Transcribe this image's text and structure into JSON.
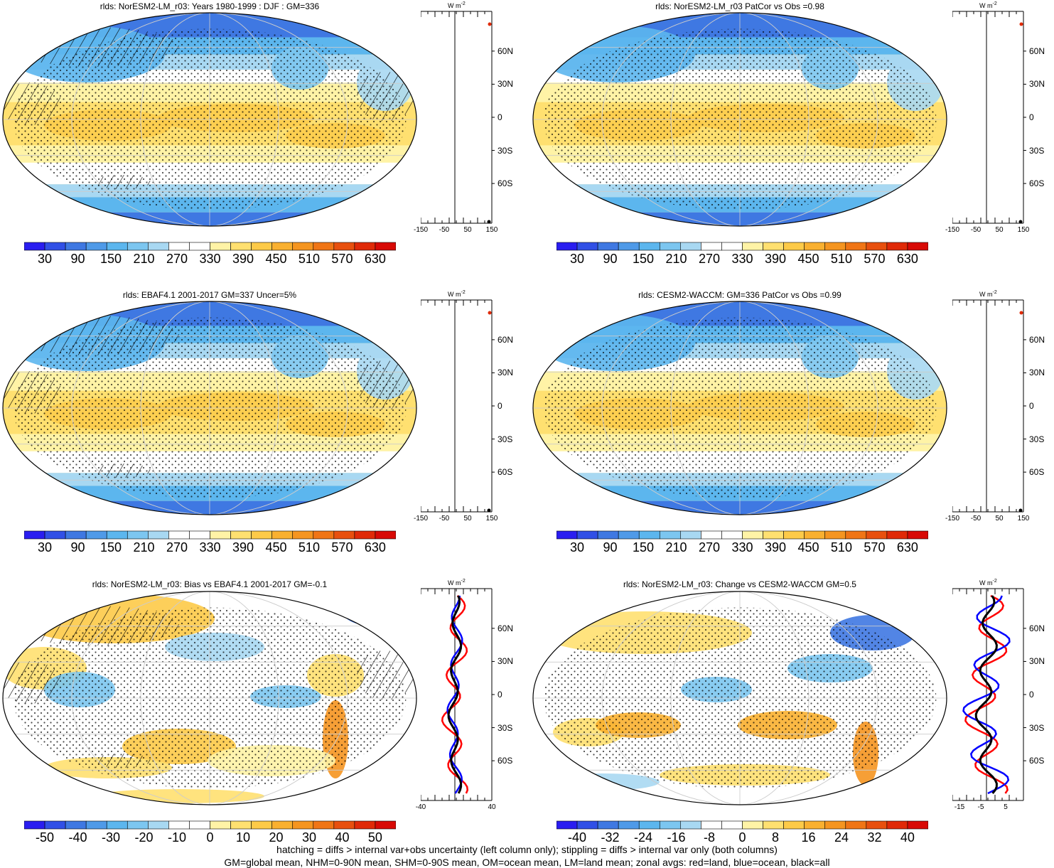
{
  "chart_data": [
    {
      "type": "heatmap",
      "title": "rlds: NorESM2-LM_r03: Years 1980-1999 : DJF : GM=336",
      "colorbar_ticks": [
        "30",
        "90",
        "150",
        "210",
        "270",
        "330",
        "390",
        "450",
        "510",
        "570",
        "630"
      ],
      "zonal_xticks": [
        "-150",
        "-50",
        "50",
        "150"
      ],
      "zonal_unit": "W m",
      "zonal_unit_exp": "-2",
      "lat_ticks": [
        "60N",
        "30N",
        "0",
        "30S",
        "60S"
      ],
      "colormap": "diverging-blue-white-red"
    },
    {
      "type": "heatmap",
      "title": "rlds: NorESM2-LM_r03 PatCor vs Obs =0.98",
      "colorbar_ticks": [
        "30",
        "90",
        "150",
        "210",
        "270",
        "330",
        "390",
        "450",
        "510",
        "570",
        "630"
      ],
      "zonal_xticks": [
        "-150",
        "-50",
        "50",
        "150"
      ],
      "zonal_unit": "W m",
      "zonal_unit_exp": "-2",
      "lat_ticks": [
        "60N",
        "30N",
        "0",
        "30S",
        "60S"
      ],
      "colormap": "diverging-blue-white-red"
    },
    {
      "type": "heatmap",
      "title": "rlds: EBAF4.1 2001-2017 GM=337 Uncer=5%",
      "colorbar_ticks": [
        "30",
        "90",
        "150",
        "210",
        "270",
        "330",
        "390",
        "450",
        "510",
        "570",
        "630"
      ],
      "zonal_xticks": [
        "-150",
        "-50",
        "50",
        "150"
      ],
      "zonal_unit": "W m",
      "zonal_unit_exp": "-2",
      "lat_ticks": [
        "60N",
        "30N",
        "0",
        "30S",
        "60S"
      ],
      "colormap": "diverging-blue-white-red"
    },
    {
      "type": "heatmap",
      "title": "rlds: CESM2-WACCM: GM=336 PatCor vs Obs =0.99",
      "colorbar_ticks": [
        "30",
        "90",
        "150",
        "210",
        "270",
        "330",
        "390",
        "450",
        "510",
        "570",
        "630"
      ],
      "zonal_xticks": [
        "-150",
        "-50",
        "50",
        "150"
      ],
      "zonal_unit": "W m",
      "zonal_unit_exp": "-2",
      "lat_ticks": [
        "60N",
        "30N",
        "0",
        "30S",
        "60S"
      ],
      "colormap": "diverging-blue-white-red"
    },
    {
      "type": "heatmap",
      "title": "rlds: NorESM2-LM_r03: Bias vs EBAF4.1 2001-2017 GM=-0.1",
      "colorbar_ticks": [
        "-50",
        "-40",
        "-30",
        "-20",
        "-10",
        "0",
        "10",
        "20",
        "30",
        "40",
        "50"
      ],
      "zonal_xticks": [
        "-40",
        "40"
      ],
      "zonal_unit": "W m",
      "zonal_unit_exp": "-2",
      "lat_ticks": [
        "60N",
        "30N",
        "0",
        "30S",
        "60S"
      ],
      "colormap": "diverging-blue-white-red",
      "zonal_series_colors": {
        "land": "#ff0000",
        "ocean": "#0000ff",
        "all": "#000000"
      }
    },
    {
      "type": "heatmap",
      "title": "rlds: NorESM2-LM_r03: Change vs CESM2-WACCM GM=0.5",
      "colorbar_ticks": [
        "-40",
        "-32",
        "-24",
        "-16",
        "-8",
        "0",
        "8",
        "16",
        "24",
        "32",
        "40"
      ],
      "zonal_xticks": [
        "-15",
        "-5",
        "5"
      ],
      "zonal_unit": "W m",
      "zonal_unit_exp": "-2",
      "lat_ticks": [
        "60N",
        "30N",
        "0",
        "30S",
        "60S"
      ],
      "colormap": "diverging-blue-white-red",
      "zonal_series_colors": {
        "land": "#ff0000",
        "ocean": "#0000ff",
        "all": "#000000"
      }
    }
  ],
  "footer": {
    "line1": "hatching = diffs > internal var+obs uncertainty (left column only); stippling = diffs > internal var only (both columns)",
    "line2": "GM=global mean, NHM=0-90N mean, SHM=0-90S mean, OM=ocean mean, LM=land mean; zonal avgs: red=land, blue=ocean, black=all"
  },
  "colors": {
    "cbar": [
      "#2a1ef0",
      "#3150e6",
      "#3f78e2",
      "#4f9ae8",
      "#5cb6ee",
      "#7cc6f0",
      "#a8d8f2",
      "#ffffff",
      "#ffffff",
      "#fff3a6",
      "#ffe070",
      "#fdca48",
      "#f9b030",
      "#f59520",
      "#f07515",
      "#e8500e",
      "#e02a08",
      "#d80a06"
    ]
  }
}
